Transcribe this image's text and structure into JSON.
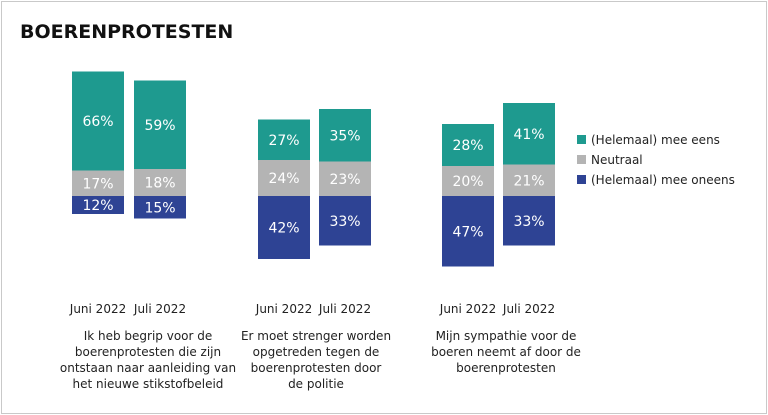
{
  "chart_data": {
    "type": "bar",
    "stacked": "diverging",
    "title": "BOERENPROTESTEN",
    "series": [
      {
        "key": "eens",
        "name": "(Helemaal) mee eens",
        "color": "#1e9a8f"
      },
      {
        "key": "neutraal",
        "name": "Neutraal",
        "color": "#b4b4b4"
      },
      {
        "key": "oneens",
        "name": "(Helemaal) mee oneens",
        "color": "#2e4394"
      }
    ],
    "groups": [
      {
        "label": "Ik heb begrip voor de boerenprotesten die zijn ontstaan naar aanleiding van het nieuwe stikstofbeleid",
        "label_lines": [
          "Ik heb begrip voor de",
          "boerenprotesten die zijn",
          "ontstaan naar aanleiding van",
          "het nieuwe stikstofbeleid"
        ],
        "bars": [
          {
            "period": "Juni 2022",
            "eens": 66,
            "neutraal": 17,
            "oneens": 12
          },
          {
            "period": "Juli 2022",
            "eens": 59,
            "neutraal": 18,
            "oneens": 15
          }
        ]
      },
      {
        "label": "Er moet strenger worden opgetreden tegen de boerenprotesten door de politie",
        "label_lines": [
          "Er moet strenger worden",
          "opgetreden tegen de",
          "boerenprotesten door",
          "de politie"
        ],
        "bars": [
          {
            "period": "Juni 2022",
            "eens": 27,
            "neutraal": 24,
            "oneens": 42
          },
          {
            "period": "Juli 2022",
            "eens": 35,
            "neutraal": 23,
            "oneens": 33
          }
        ]
      },
      {
        "label": "Mijn sympathie voor de boeren neemt af door de boerenprotesten",
        "label_lines": [
          "Mijn sympathie voor de",
          "boeren neemt af door de",
          "boerenprotesten"
        ],
        "bars": [
          {
            "period": "Juni 2022",
            "eens": 28,
            "neutraal": 20,
            "oneens": 47
          },
          {
            "period": "Juli 2022",
            "eens": 41,
            "neutraal": 21,
            "oneens": 33
          }
        ]
      }
    ],
    "value_suffix": "%",
    "legend_position": "right"
  }
}
